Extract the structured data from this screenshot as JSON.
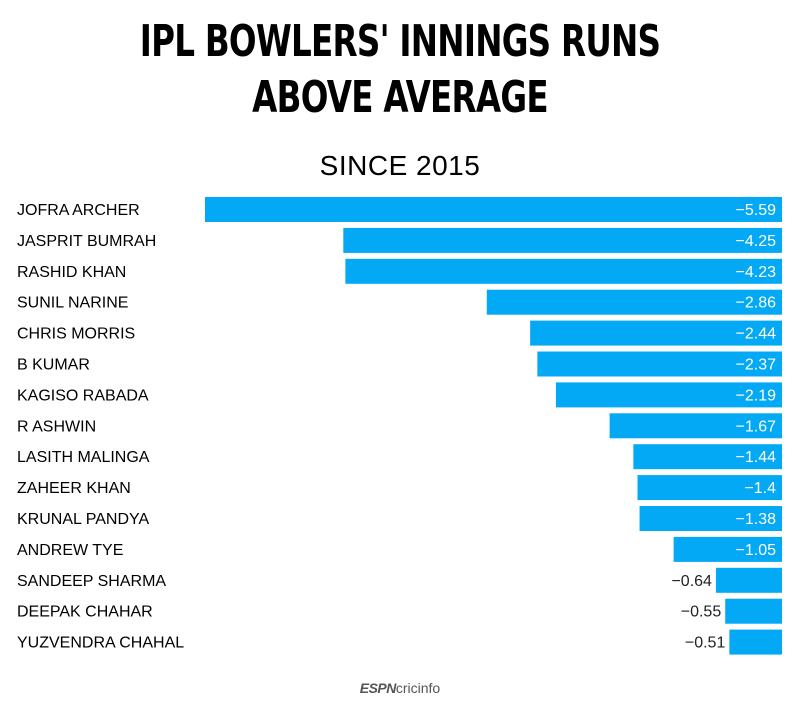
{
  "title": "IPL BOWLERS' INNINGS RUNS ABOVE AVERAGE",
  "subtitle": "SINCE 2015",
  "footer": {
    "brand_a": "ESPN",
    "brand_b": "cricinfo"
  },
  "colors": {
    "bar": "#03a9f4",
    "label_inside": "#ffffff",
    "label_outside": "#222222"
  },
  "chart_data": {
    "type": "bar",
    "orientation": "horizontal",
    "categories": [
      "JOFRA ARCHER",
      "JASPRIT BUMRAH",
      "RASHID KHAN",
      "SUNIL NARINE",
      "CHRIS MORRIS",
      "B KUMAR",
      "KAGISO RABADA",
      "R ASHWIN",
      "LASITH MALINGA",
      "ZAHEER KHAN",
      "KRUNAL PANDYA",
      "ANDREW TYE",
      "SANDEEP SHARMA",
      "DEEPAK CHAHAR",
      "YUZVENDRA CHAHAL"
    ],
    "values": [
      -5.59,
      -4.25,
      -4.23,
      -2.86,
      -2.44,
      -2.37,
      -2.19,
      -1.67,
      -1.44,
      -1.4,
      -1.38,
      -1.05,
      -0.64,
      -0.55,
      -0.51
    ],
    "value_labels": [
      "−5.59",
      "−4.25",
      "−4.23",
      "−2.86",
      "−2.44",
      "−2.37",
      "−2.19",
      "−1.67",
      "−1.44",
      "−1.4",
      "−1.38",
      "−1.05",
      "−0.64",
      "−0.55",
      "−0.51"
    ],
    "xlim": [
      -5.59,
      0
    ],
    "grid": false,
    "legend": "none"
  }
}
